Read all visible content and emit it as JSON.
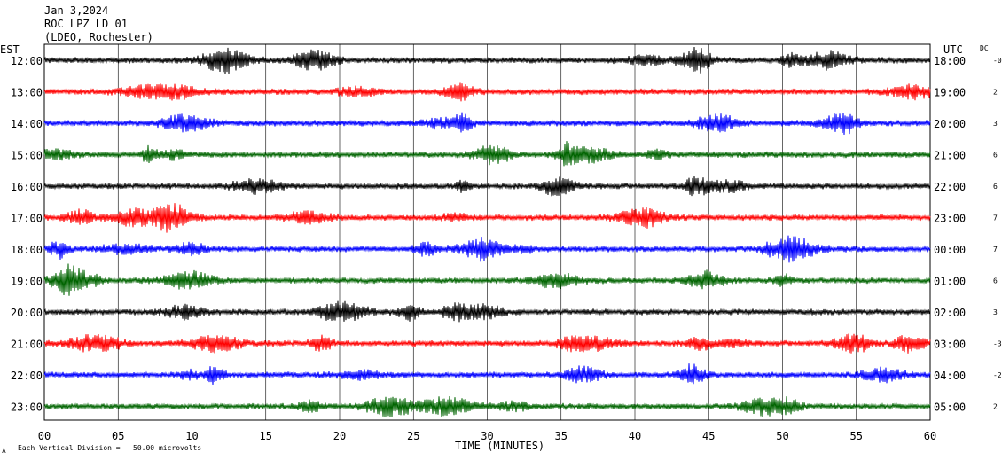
{
  "header": {
    "date": "Jan 3,2024",
    "station": "ROC LPZ LD 01",
    "network": "(LDEO, Rochester)"
  },
  "left_zone_label": "EST",
  "right_zone_label": "UTC",
  "dc_header": "DC",
  "footer": {
    "axis_title": "TIME (MINUTES)",
    "scale_note": "Each Vertical Division =   50.00 microvolts",
    "corner_mark": "ʌ"
  },
  "chart_data": {
    "type": "line",
    "title": "",
    "xlabel": "TIME (MINUTES)",
    "ylabel": "",
    "xlim": [
      0,
      60
    ],
    "x_ticks": [
      "00",
      "05",
      "10",
      "15",
      "20",
      "25",
      "30",
      "35",
      "40",
      "45",
      "50",
      "55",
      "60"
    ],
    "grid": true,
    "trace_colors": [
      "#000000",
      "#ff0000",
      "#0000ff",
      "#006400"
    ],
    "rows": [
      {
        "est": "12:00",
        "utc": "18:00",
        "dc": "-0",
        "color": "#000000"
      },
      {
        "est": "13:00",
        "utc": "19:00",
        "dc": "2",
        "color": "#ff0000"
      },
      {
        "est": "14:00",
        "utc": "20:00",
        "dc": "3",
        "color": "#0000ff"
      },
      {
        "est": "15:00",
        "utc": "21:00",
        "dc": "6",
        "color": "#006400"
      },
      {
        "est": "16:00",
        "utc": "22:00",
        "dc": "6",
        "color": "#000000"
      },
      {
        "est": "17:00",
        "utc": "23:00",
        "dc": "7",
        "color": "#ff0000"
      },
      {
        "est": "18:00",
        "utc": "00:00",
        "dc": "7",
        "color": "#0000ff"
      },
      {
        "est": "19:00",
        "utc": "01:00",
        "dc": "6",
        "color": "#006400"
      },
      {
        "est": "20:00",
        "utc": "02:00",
        "dc": "3",
        "color": "#000000"
      },
      {
        "est": "21:00",
        "utc": "03:00",
        "dc": "-3",
        "color": "#ff0000"
      },
      {
        "est": "22:00",
        "utc": "04:00",
        "dc": "-2",
        "color": "#0000ff"
      },
      {
        "est": "23:00",
        "utc": "05:00",
        "dc": "2",
        "color": "#006400"
      }
    ]
  }
}
